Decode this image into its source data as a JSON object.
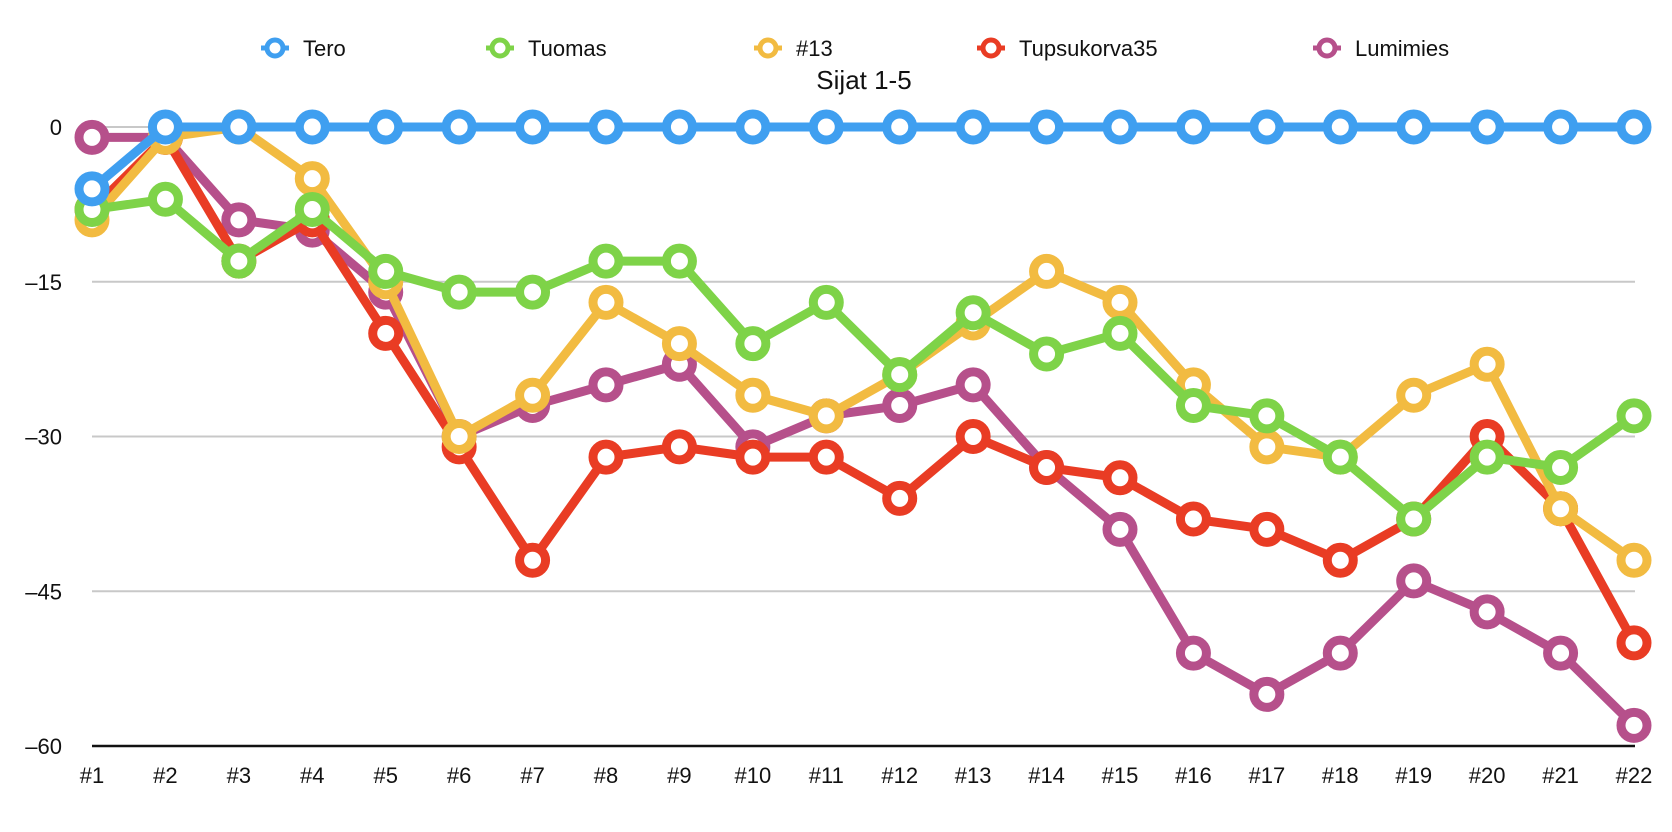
{
  "chart_data": {
    "type": "line",
    "title": "Sijat 1-5",
    "xlabel": "",
    "ylabel": "",
    "ylim": [
      -60,
      0
    ],
    "yticks": [
      0,
      -15,
      -30,
      -45,
      -60
    ],
    "yticklabels": [
      "0",
      "–15",
      "–30",
      "–45",
      "–60"
    ],
    "grid": true,
    "legend_position": "top",
    "categories": [
      "#1",
      "#2",
      "#3",
      "#4",
      "#5",
      "#6",
      "#7",
      "#8",
      "#9",
      "#10",
      "#11",
      "#12",
      "#13",
      "#14",
      "#15",
      "#16",
      "#17",
      "#18",
      "#19",
      "#20",
      "#21",
      "#22"
    ],
    "series": [
      {
        "name": "Tero",
        "color": "#3f9ff0",
        "values": [
          -6,
          0,
          0,
          0,
          0,
          0,
          0,
          0,
          0,
          0,
          0,
          0,
          0,
          0,
          0,
          0,
          0,
          0,
          0,
          0,
          0,
          0
        ]
      },
      {
        "name": "Tuomas",
        "color": "#7ed348",
        "values": [
          -8,
          -7,
          -13,
          -8,
          -14,
          -16,
          -16,
          -13,
          -13,
          -21,
          -17,
          -24,
          -18,
          -22,
          -20,
          -27,
          -28,
          -32,
          -38,
          -32,
          -33,
          -28
        ]
      },
      {
        "name": "#13",
        "color": "#f2bb41",
        "values": [
          -9,
          -1,
          0,
          -5,
          -15,
          -30,
          -26,
          -17,
          -21,
          -26,
          -28,
          -24,
          -19,
          -14,
          -17,
          -25,
          -31,
          -32,
          -26,
          -23,
          -37,
          -42
        ]
      },
      {
        "name": "Tupsukorva35",
        "color": "#e93c24",
        "values": [
          -8,
          -1,
          -13,
          -9,
          -20,
          -31,
          -42,
          -32,
          -31,
          -32,
          -32,
          -36,
          -30,
          -33,
          -34,
          -38,
          -39,
          -42,
          -38,
          -30,
          -37,
          -50
        ]
      },
      {
        "name": "Lumimies",
        "color": "#b6508b",
        "values": [
          -1,
          -1,
          -9,
          -10,
          -16,
          -30,
          -27,
          -25,
          -23,
          -31,
          -28,
          -27,
          -25,
          -33,
          -39,
          -51,
          -55,
          -51,
          -44,
          -47,
          -51,
          -58
        ]
      }
    ]
  }
}
